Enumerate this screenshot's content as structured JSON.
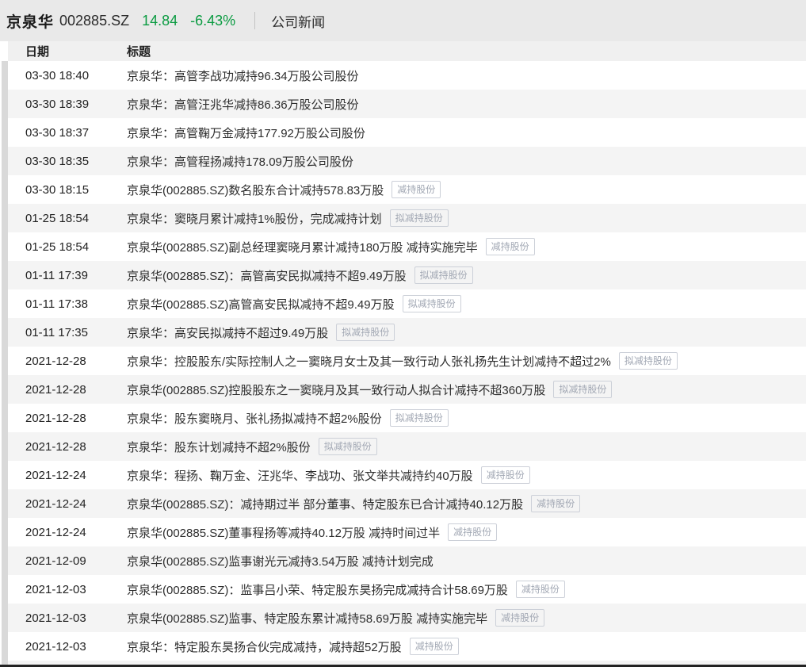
{
  "topbar": {
    "stock_name": "京泉华",
    "stock_code": "002885.SZ",
    "price": "14.84",
    "change_percent": "-6.43%",
    "section": "公司新闻"
  },
  "colors": {
    "quote_green": "#0a9b41",
    "topbar_bg": "#e9e9e9",
    "stripe_bg": "#f4f4f4",
    "tag_border": "#ccd0d8",
    "tag_text": "#a2a8b4"
  },
  "table": {
    "columns": {
      "date": "日期",
      "title": "标题"
    },
    "tags_legend": [
      "减持股份",
      "拟减持股份"
    ],
    "rows": [
      {
        "date": "03-30 18:40",
        "title": "京泉华：高管李战功减持96.34万股公司股份",
        "tag": ""
      },
      {
        "date": "03-30 18:39",
        "title": "京泉华：高管汪兆华减持86.36万股公司股份",
        "tag": ""
      },
      {
        "date": "03-30 18:37",
        "title": "京泉华：高管鞠万金减持177.92万股公司股份",
        "tag": ""
      },
      {
        "date": "03-30 18:35",
        "title": "京泉华：高管程扬减持178.09万股公司股份",
        "tag": ""
      },
      {
        "date": "03-30 18:15",
        "title": "京泉华(002885.SZ)数名股东合计减持578.83万股",
        "tag": "减持股份"
      },
      {
        "date": "01-25 18:54",
        "title": "京泉华：窦晓月累计减持1%股份，完成减持计划",
        "tag": "拟减持股份"
      },
      {
        "date": "01-25 18:54",
        "title": "京泉华(002885.SZ)副总经理窦晓月累计减持180万股 减持实施完毕",
        "tag": "减持股份"
      },
      {
        "date": "01-11 17:39",
        "title": "京泉华(002885.SZ)：高管高安民拟减持不超9.49万股",
        "tag": "拟减持股份"
      },
      {
        "date": "01-11 17:38",
        "title": "京泉华(002885.SZ)高管高安民拟减持不超9.49万股",
        "tag": "拟减持股份"
      },
      {
        "date": "01-11 17:35",
        "title": "京泉华：高安民拟减持不超过9.49万股",
        "tag": "拟减持股份"
      },
      {
        "date": "2021-12-28",
        "title": "京泉华：控股股东/实际控制人之一窦晓月女士及其一致行动人张礼扬先生计划减持不超过2%",
        "tag": "拟减持股份"
      },
      {
        "date": "2021-12-28",
        "title": "京泉华(002885.SZ)控股股东之一窦晓月及其一致行动人拟合计减持不超360万股",
        "tag": "拟减持股份"
      },
      {
        "date": "2021-12-28",
        "title": "京泉华：股东窦晓月、张礼扬拟减持不超2%股份",
        "tag": "拟减持股份"
      },
      {
        "date": "2021-12-28",
        "title": "京泉华：股东计划减持不超2%股份",
        "tag": "拟减持股份"
      },
      {
        "date": "2021-12-24",
        "title": "京泉华：程扬、鞠万金、汪兆华、李战功、张文举共减持约40万股",
        "tag": "减持股份"
      },
      {
        "date": "2021-12-24",
        "title": "京泉华(002885.SZ)：减持期过半 部分董事、特定股东已合计减持40.12万股",
        "tag": "减持股份"
      },
      {
        "date": "2021-12-24",
        "title": "京泉华(002885.SZ)董事程扬等减持40.12万股 减持时间过半",
        "tag": "减持股份"
      },
      {
        "date": "2021-12-09",
        "title": "京泉华(002885.SZ)监事谢光元减持3.54万股 减持计划完成",
        "tag": ""
      },
      {
        "date": "2021-12-03",
        "title": "京泉华(002885.SZ)：监事吕小荣、特定股东昊扬完成减持合计58.69万股",
        "tag": "减持股份"
      },
      {
        "date": "2021-12-03",
        "title": "京泉华(002885.SZ)监事、特定股东累计减持58.69万股 减持实施完毕",
        "tag": "减持股份"
      },
      {
        "date": "2021-12-03",
        "title": "京泉华：特定股东昊扬合伙完成减持，减持超52万股",
        "tag": "减持股份"
      }
    ]
  }
}
